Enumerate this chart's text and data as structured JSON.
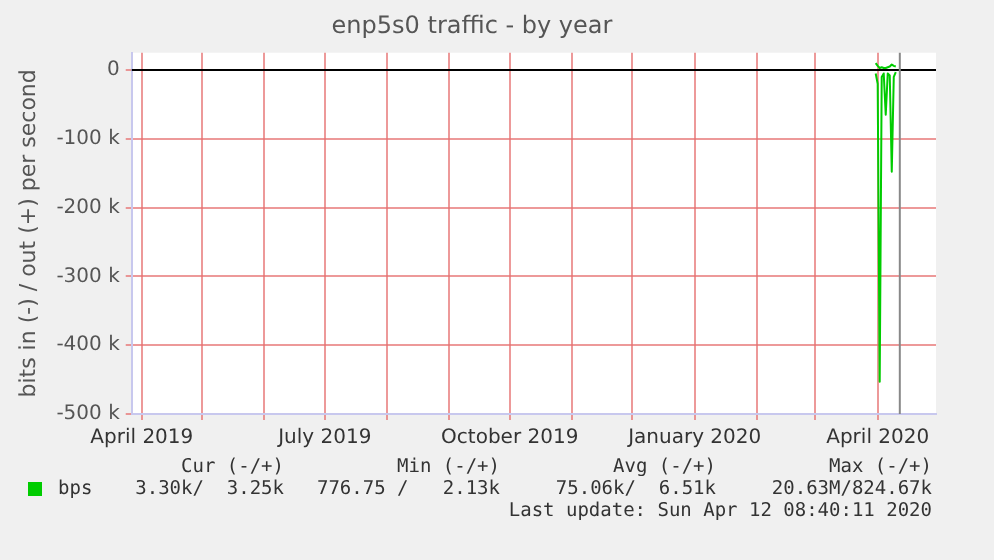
{
  "chart_data": {
    "type": "line",
    "title": "enp5s0 traffic - by year",
    "ylabel": "bits in (-) / out (+) per second",
    "xlim": [
      "2019-03-27",
      "2020-04-30"
    ],
    "xticks": [
      {
        "value": "2019-04-01",
        "label": "April 2019"
      },
      {
        "value": "2019-05-01",
        "label": null
      },
      {
        "value": "2019-06-01",
        "label": null
      },
      {
        "value": "2019-07-01",
        "label": "July 2019"
      },
      {
        "value": "2019-08-01",
        "label": null
      },
      {
        "value": "2019-09-01",
        "label": null
      },
      {
        "value": "2019-10-01",
        "label": "October 2019"
      },
      {
        "value": "2019-11-01",
        "label": null
      },
      {
        "value": "2019-12-01",
        "label": null
      },
      {
        "value": "2020-01-01",
        "label": "January 2020"
      },
      {
        "value": "2020-02-01",
        "label": null
      },
      {
        "value": "2020-03-01",
        "label": null
      },
      {
        "value": "2020-04-01",
        "label": "April 2020"
      }
    ],
    "ylim": [
      -500000,
      25000
    ],
    "yticks": [
      {
        "value": 0,
        "label": "0"
      },
      {
        "value": -100000,
        "label": "-100 k"
      },
      {
        "value": -200000,
        "label": "-200 k"
      },
      {
        "value": -300000,
        "label": "-300 k"
      },
      {
        "value": -400000,
        "label": "-400 k"
      },
      {
        "value": -500000,
        "label": "-500 k"
      }
    ],
    "grid": true,
    "legend": "bottom left",
    "marker": "none",
    "line_style": "solid",
    "series": [
      {
        "name": "bps",
        "color": "#00cc00",
        "x": [
          "2020-03-31",
          "2020-04-01",
          "2020-04-02",
          "2020-04-03",
          "2020-04-04",
          "2020-04-05",
          "2020-04-06",
          "2020-04-07",
          "2020-04-08",
          "2020-04-09",
          "2020-04-10"
        ],
        "values": [
          -5000,
          -20000,
          -453000,
          -10000,
          -5000,
          -65000,
          -5000,
          -8000,
          -148000,
          -10000,
          -3000
        ]
      },
      {
        "color": "#00cc00",
        "x": [
          "2020-03-31",
          "2020-04-01",
          "2020-04-02",
          "2020-04-03",
          "2020-04-04",
          "2020-04-05",
          "2020-04-06",
          "2020-04-07",
          "2020-04-08",
          "2020-04-09",
          "2020-04-10"
        ],
        "values": [
          10000,
          6000,
          3000,
          4000,
          3000,
          3000,
          4000,
          5000,
          8000,
          6000,
          5000
        ]
      }
    ],
    "ref_lines": [
      {
        "axis": "y",
        "value": 0,
        "color": "#000000"
      },
      {
        "axis": "x",
        "value": "2020-04-12",
        "color": "#888888"
      }
    ],
    "annotations": [
      "Cur (-/+)",
      "Min (-/+)",
      "Avg (-/+)",
      "Max (-/+)",
      "3.30k/  3.25k",
      "776.75 /   2.13k",
      "75.06k/  6.51k",
      "20.63M/824.67k",
      "Last update: Sun Apr 12 08:40:11 2020"
    ]
  }
}
